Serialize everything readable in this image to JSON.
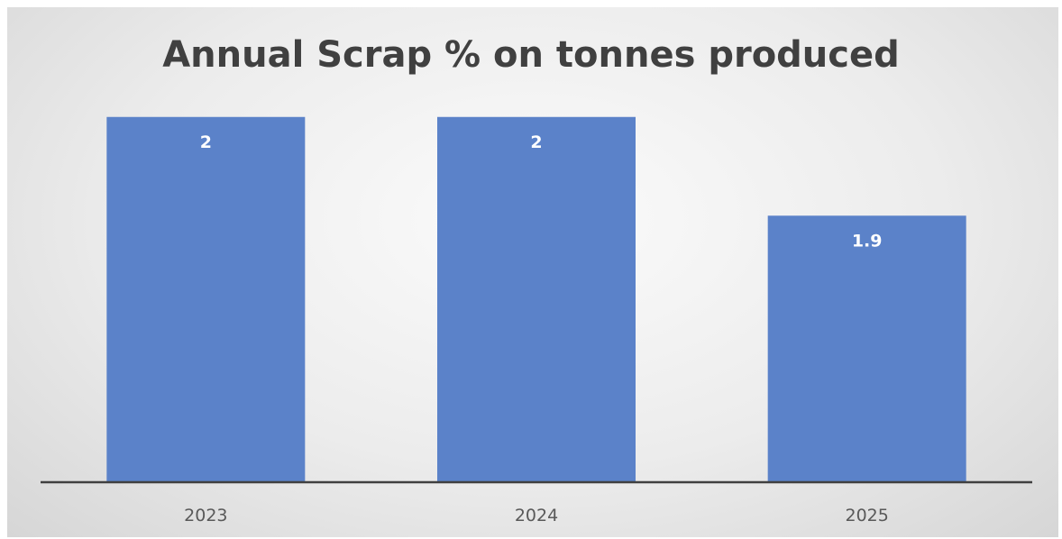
{
  "chart_data": {
    "type": "bar",
    "title": "Annual Scrap % on tonnes produced",
    "categories": [
      "2023",
      "2024",
      "2025"
    ],
    "values": [
      2,
      2,
      1.9
    ],
    "data_labels": [
      "2",
      "2",
      "1.9"
    ],
    "xlabel": "",
    "ylabel": "",
    "ylim": [
      1.63,
      2.05
    ],
    "grid": false,
    "legend": "none",
    "bar_color": "#5b82c9",
    "axis_color": "#404040"
  }
}
